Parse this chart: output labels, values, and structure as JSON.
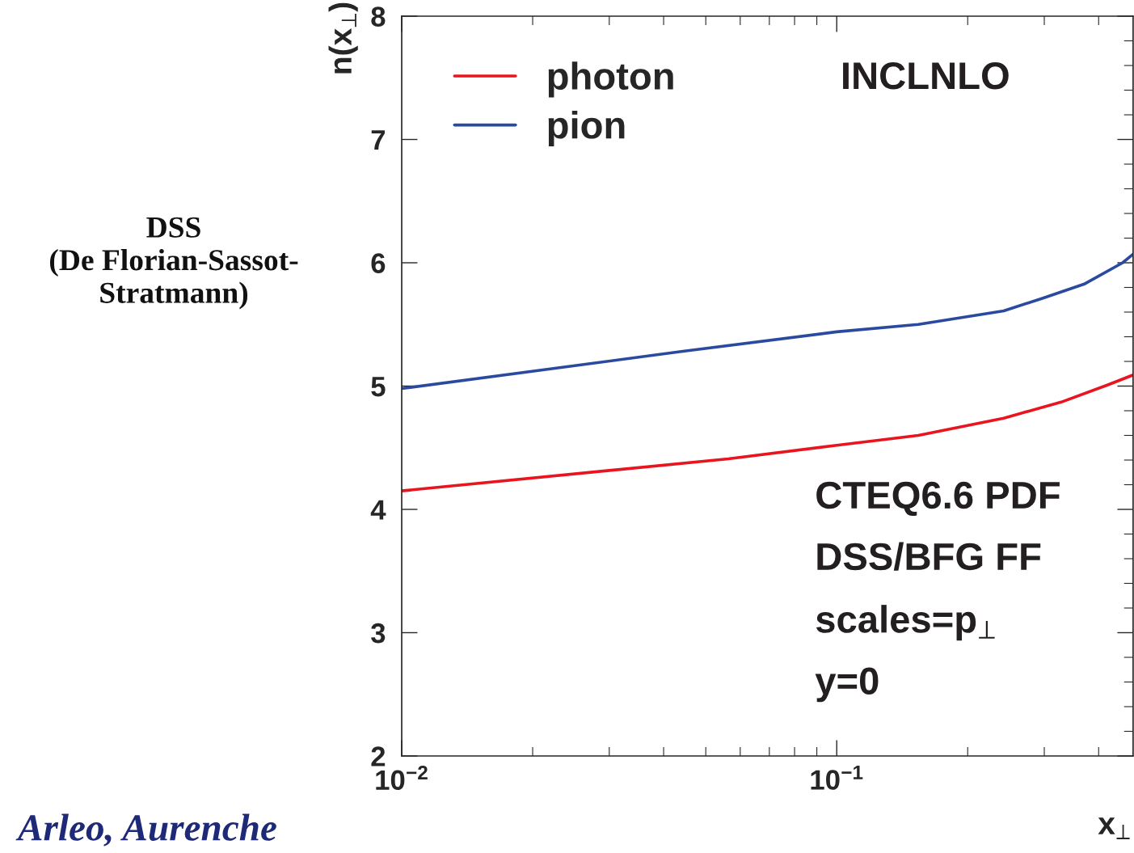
{
  "chart_data": {
    "type": "line",
    "xlabel": "x$_{⊥}$",
    "ylabel": "n(x$_{⊥}$)",
    "series": [
      {
        "name": "photon",
        "color": "#e8141e",
        "x": [
          0.01,
          0.0563,
          0.1,
          0.154,
          0.242,
          0.328,
          0.42,
          0.48
        ],
        "values": [
          4.15,
          4.41,
          4.52,
          4.6,
          4.74,
          4.87,
          5.01,
          5.09
        ]
      },
      {
        "name": "pion",
        "color": "#2a4aa0",
        "x": [
          0.01,
          0.0439,
          0.1,
          0.154,
          0.242,
          0.296,
          0.372,
          0.454,
          0.48
        ],
        "values": [
          4.98,
          5.28,
          5.44,
          5.5,
          5.61,
          5.71,
          5.83,
          6.0,
          6.07
        ]
      }
    ],
    "log": "x",
    "xlim": [
      0.01,
      0.48
    ],
    "xticks": [
      {
        "value": 0.01,
        "label": "10$^{−2}$"
      },
      {
        "value": 0.1,
        "label": "10$^{−1}$"
      }
    ],
    "ylim": [
      2,
      8
    ],
    "yticks": [
      2,
      3,
      4,
      5,
      6,
      7,
      8
    ],
    "legend": "top left",
    "grid": false,
    "annotations": [
      "INCLNLO",
      "CTEQ6.6 PDF",
      "DSS/BFG FF",
      "scales=p$_{⊥}$",
      "y=0",
      "DSS\n(De Florian-Sassot-\nStratmann)",
      "Arleo, Aurenche"
    ]
  }
}
